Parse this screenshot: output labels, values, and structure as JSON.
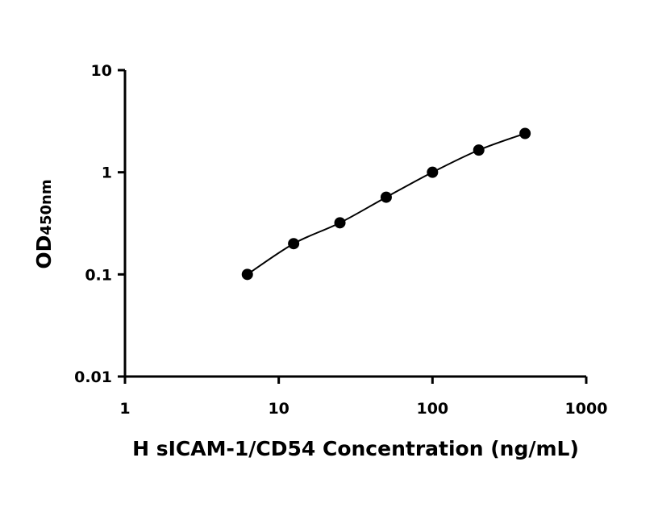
{
  "chart_data": {
    "type": "scatter",
    "xscale": "log",
    "yscale": "log",
    "xlim": [
      1,
      1000
    ],
    "ylim": [
      0.01,
      10
    ],
    "x_ticks": [
      1,
      10,
      100,
      1000
    ],
    "x_tick_labels": [
      "1",
      "10",
      "100",
      "1000"
    ],
    "y_ticks": [
      0.01,
      0.1,
      1,
      10
    ],
    "y_tick_labels": [
      "0.01",
      "0.1",
      "1",
      "10"
    ],
    "xlabel": "H sICAM-1/CD54 Concentration (ng/mL)",
    "ylabel_main": "OD",
    "ylabel_sub": "450nm",
    "grid": false,
    "legend": "none",
    "series": [
      {
        "x": [
          6.25,
          12.5,
          25,
          50,
          100,
          200,
          400
        ],
        "y": [
          0.1,
          0.2,
          0.32,
          0.57,
          1.0,
          1.65,
          2.4
        ],
        "fit": "smooth curve"
      }
    ],
    "colors": {
      "points": "#000000",
      "curve": "#000000",
      "axes": "#000000"
    }
  }
}
